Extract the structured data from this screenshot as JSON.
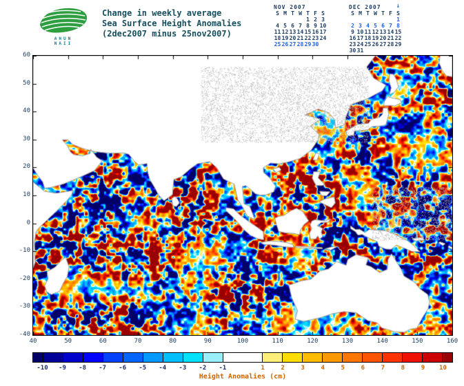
{
  "logo": {
    "text_row1": "AHUN",
    "text_row2": "NAII"
  },
  "title": {
    "line1": "Change in weekly average",
    "line2": "Sea Surface Height Anomalies",
    "line3": "(2dec2007 minus 25nov2007)"
  },
  "calendars": [
    {
      "title": "NOV 2007",
      "weekday_header": [
        "S",
        "M",
        "T",
        "W",
        "T",
        "F",
        "S"
      ],
      "weeks": [
        [
          "",
          "",
          "",
          "",
          "1",
          "2",
          "3"
        ],
        [
          "4",
          "5",
          "6",
          "7",
          "8",
          "9",
          "10"
        ],
        [
          "11",
          "12",
          "13",
          "14",
          "15",
          "16",
          "17"
        ],
        [
          "18",
          "19",
          "20",
          "21",
          "22",
          "23",
          "24"
        ],
        [
          "25",
          "26",
          "27",
          "28",
          "29",
          "30",
          ""
        ]
      ],
      "highlight_days": [
        25,
        26,
        27,
        28,
        29,
        30
      ]
    },
    {
      "title": "DEC 2007",
      "weekday_header": [
        "S",
        "M",
        "T",
        "W",
        "T",
        "F",
        "S"
      ],
      "weeks": [
        [
          "",
          "",
          "",
          "",
          "",
          "",
          "1"
        ],
        [
          "2",
          "3",
          "4",
          "5",
          "6",
          "7",
          "8"
        ],
        [
          "9",
          "10",
          "11",
          "12",
          "13",
          "14",
          "15"
        ],
        [
          "16",
          "17",
          "18",
          "19",
          "20",
          "21",
          "22"
        ],
        [
          "23",
          "24",
          "25",
          "26",
          "27",
          "28",
          "29"
        ],
        [
          "30",
          "31",
          "",
          "",
          "",
          "",
          ""
        ]
      ],
      "highlight_days": [
        1,
        2,
        3,
        4,
        5,
        6,
        7,
        8
      ],
      "marker_glyph": "↓"
    }
  ],
  "map": {
    "lon_ticks": [
      40,
      50,
      60,
      70,
      80,
      90,
      100,
      110,
      120,
      130,
      140,
      150,
      160
    ],
    "lat_ticks": [
      60,
      50,
      40,
      30,
      20,
      10,
      0,
      -10,
      -20,
      -30,
      -40
    ]
  },
  "colorbar": {
    "tick_labels": [
      -10,
      -9,
      -8,
      -7,
      -6,
      -5,
      -4,
      -3,
      -2,
      -1,
      1,
      2,
      3,
      4,
      5,
      6,
      7,
      8,
      9,
      10
    ],
    "label": "Height Anomalies (cm)",
    "colors": [
      "#000066",
      "#000099",
      "#0000cc",
      "#0000ff",
      "#0040ff",
      "#0066ff",
      "#0099ff",
      "#00bfff",
      "#00e0ff",
      "#99eeff",
      "#ffffff",
      "#ffee77",
      "#ffdd00",
      "#ffbb00",
      "#ff9900",
      "#ff7700",
      "#ff5500",
      "#ff3300",
      "#ee1100",
      "#cc0000",
      "#990000"
    ]
  },
  "colors": {
    "title": "#174f5e",
    "logo_leaf": "#2f9e41",
    "logo_wave": "#ffffff",
    "logo_text": "#0e7a8a",
    "calendar_normal": "#1d3c63",
    "calendar_highlight": "#1f5fe0",
    "axis_label": "#1d3c63",
    "cb_negative": "#1b2d70",
    "cb_positive": "#cc6600",
    "caption": "#cc6600",
    "land": "#ffffff",
    "coastline": "#999999"
  },
  "chart_data": {
    "type": "heatmap",
    "title": "Change in weekly average Sea Surface Height Anomalies (2dec2007 minus 25nov2007)",
    "x_ticks_deg_east": [
      40,
      50,
      60,
      70,
      80,
      90,
      100,
      110,
      120,
      130,
      140,
      150,
      160
    ],
    "x_range": [
      40,
      160
    ],
    "y_ticks_deg_north": [
      60,
      50,
      40,
      30,
      20,
      10,
      0,
      -10,
      -20,
      -30,
      -40
    ],
    "y_range": [
      -40,
      60
    ],
    "value_label": "Height Anomalies (cm)",
    "value_units": "cm",
    "value_levels": [
      -10,
      -9,
      -8,
      -7,
      -6,
      -5,
      -4,
      -3,
      -2,
      -1,
      1,
      2,
      3,
      4,
      5,
      6,
      7,
      8,
      9,
      10
    ],
    "value_range": [
      -10,
      10
    ],
    "noise_seed": 20071202
  }
}
